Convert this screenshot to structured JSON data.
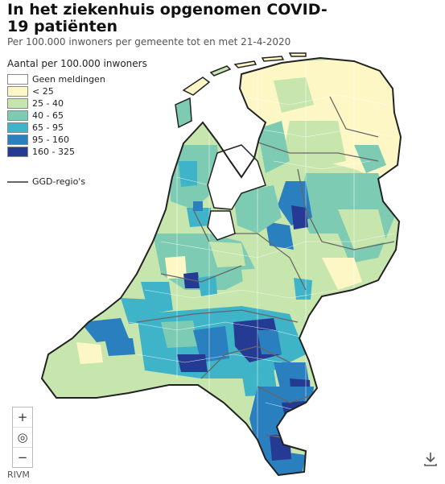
{
  "header": {
    "title": "In het ziekenhuis opgenomen COVID-19 patiënten",
    "subtitle": "Per 100.000 inwoners per gemeente tot en met 21-4-2020"
  },
  "legend": {
    "title": "Aantal per 100.000 inwoners",
    "items": [
      {
        "label": "Geen meldingen",
        "color": "#ffffff"
      },
      {
        "label": "< 25",
        "color": "#fdf7c5"
      },
      {
        "label": "25 - 40",
        "color": "#c6e6ad"
      },
      {
        "label": "40 - 65",
        "color": "#7dcbb2"
      },
      {
        "label": "65 - 95",
        "color": "#3fb3c8"
      },
      {
        "label": "95 - 160",
        "color": "#2a7fbe"
      },
      {
        "label": "160 - 325",
        "color": "#243a93"
      }
    ],
    "ggd_label": "GGD-regio's"
  },
  "controls": {
    "zoom_in": "+",
    "locate": "◎",
    "zoom_out": "−"
  },
  "credit": "RIVM"
}
